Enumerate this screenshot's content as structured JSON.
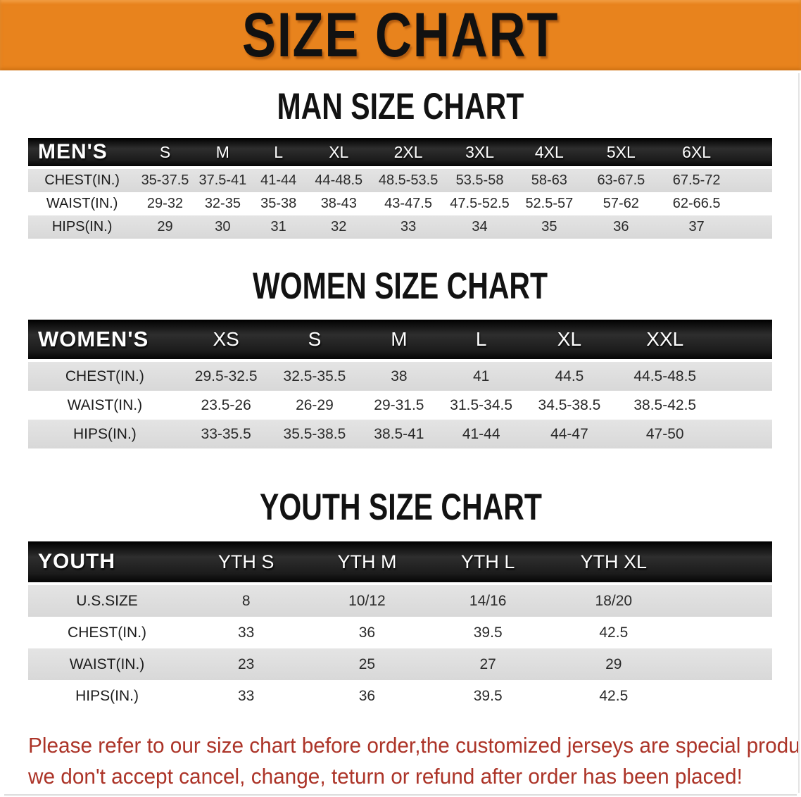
{
  "banner": {
    "title": "SIZE CHART",
    "bg_color": "#E8831D"
  },
  "men": {
    "heading": "MAN SIZE CHART",
    "corner_label": "MEN'S",
    "sizes": [
      "S",
      "M",
      "L",
      "XL",
      "2XL",
      "3XL",
      "4XL",
      "5XL",
      "6XL"
    ],
    "rows": [
      {
        "label": "CHEST(IN.)",
        "values": [
          "35-37.5",
          "37.5-41",
          "41-44",
          "44-48.5",
          "48.5-53.5",
          "53.5-58",
          "58-63",
          "63-67.5",
          "67.5-72"
        ]
      },
      {
        "label": "WAIST(IN.)",
        "values": [
          "29-32",
          "32-35",
          "35-38",
          "38-43",
          "43-47.5",
          "47.5-52.5",
          "52.5-57",
          "57-62",
          "62-66.5"
        ]
      },
      {
        "label": "HIPS(IN.)",
        "values": [
          "29",
          "30",
          "31",
          "32",
          "33",
          "34",
          "35",
          "36",
          "37"
        ]
      }
    ]
  },
  "women": {
    "heading": "WOMEN SIZE CHART",
    "corner_label": "WOMEN'S",
    "sizes": [
      "XS",
      "S",
      "M",
      "L",
      "XL",
      "XXL"
    ],
    "rows": [
      {
        "label": "CHEST(IN.)",
        "values": [
          "29.5-32.5",
          "32.5-35.5",
          "38",
          "41",
          "44.5",
          "44.5-48.5"
        ]
      },
      {
        "label": "WAIST(IN.)",
        "values": [
          "23.5-26",
          "26-29",
          "29-31.5",
          "31.5-34.5",
          "34.5-38.5",
          "38.5-42.5"
        ]
      },
      {
        "label": "HIPS(IN.)",
        "values": [
          "33-35.5",
          "35.5-38.5",
          "38.5-41",
          "41-44",
          "44-47",
          "47-50"
        ]
      }
    ]
  },
  "youth": {
    "heading": "YOUTH SIZE CHART",
    "corner_label": "YOUTH",
    "sizes": [
      "YTH S",
      "YTH M",
      "YTH L",
      "YTH XL"
    ],
    "rows": [
      {
        "label": "U.S.SIZE",
        "values": [
          "8",
          "10/12",
          "14/16",
          "18/20"
        ]
      },
      {
        "label": "CHEST(IN.)",
        "values": [
          "33",
          "36",
          "39.5",
          "42.5"
        ]
      },
      {
        "label": "WAIST(IN.)",
        "values": [
          "23",
          "25",
          "27",
          "29"
        ]
      },
      {
        "label": "HIPS(IN.)",
        "values": [
          "33",
          "36",
          "39.5",
          "42.5"
        ]
      }
    ]
  },
  "disclaimer": {
    "color": "#AC3428",
    "lines": [
      "Please refer to our size chart before order,the customized jerseys are special products,",
      "we don't accept cancel, change, teturn or refund after order has been placed!"
    ]
  },
  "colors": {
    "banner_bg": "#E8831D",
    "table_header_bg": "#1B1B1B",
    "table_header_text": "#FFFFFF",
    "row_stripe_gray": "#DCDCDC",
    "heading_text": "#121212"
  }
}
